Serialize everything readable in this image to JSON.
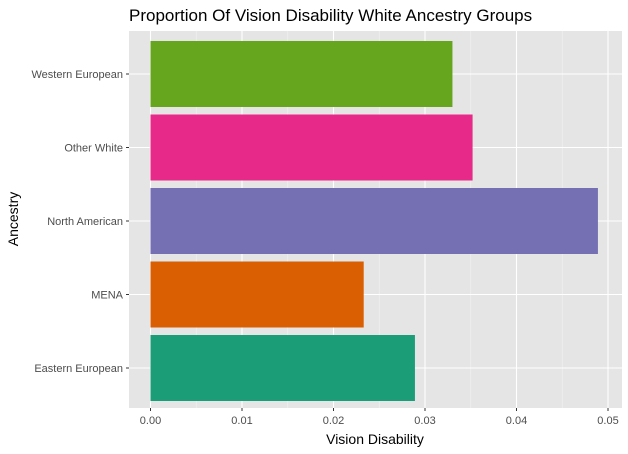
{
  "chart_data": {
    "type": "bar",
    "orientation": "horizontal",
    "title": "Proportion Of Vision Disability White Ancestry Groups",
    "xlabel": "Vision Disability",
    "ylabel": "Ancestry",
    "categories": [
      "Eastern European",
      "MENA",
      "North American",
      "Other White",
      "Western European"
    ],
    "values": [
      0.0289,
      0.0233,
      0.0489,
      0.0352,
      0.033
    ],
    "colors": [
      "#1b9e77",
      "#d95f02",
      "#7570b3",
      "#e7298a",
      "#66a61e"
    ],
    "xlim": [
      0,
      0.05
    ],
    "xticks": [
      "0.00",
      "0.01",
      "0.02",
      "0.03",
      "0.04",
      "0.05"
    ],
    "grid": true,
    "legend": "none",
    "background": "#e5e5e5"
  }
}
